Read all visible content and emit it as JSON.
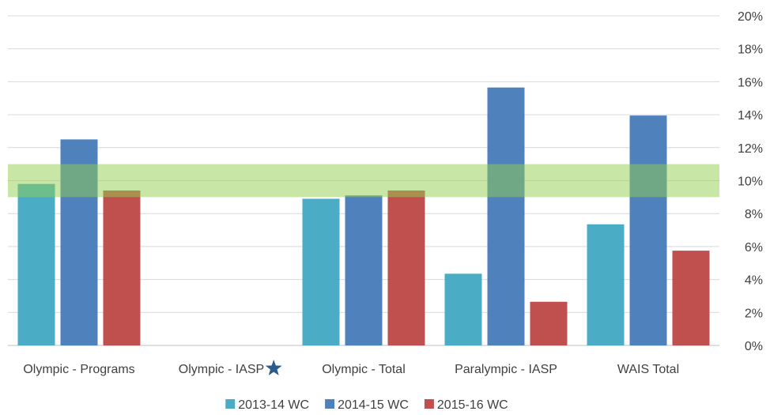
{
  "chart_data": {
    "type": "bar",
    "categories": [
      "Olympic - Programs",
      "Olympic - IASP",
      "Olympic - Total",
      "Paralympic - IASP",
      "WAIS Total"
    ],
    "series": [
      {
        "name": "2013-14 WC",
        "color": "#4BACC6",
        "values": [
          9.8,
          null,
          8.9,
          4.35,
          7.35
        ]
      },
      {
        "name": "2014-15 WC",
        "color": "#4F81BD",
        "values": [
          12.5,
          null,
          9.1,
          15.65,
          13.95
        ]
      },
      {
        "name": "2015-16 WC",
        "color": "#C0504D",
        "values": [
          9.4,
          null,
          9.4,
          2.65,
          5.75
        ]
      }
    ],
    "ylim": [
      0,
      20
    ],
    "yticks": [
      "0%",
      "2%",
      "4%",
      "6%",
      "8%",
      "10%",
      "12%",
      "14%",
      "16%",
      "18%",
      "20%"
    ],
    "ytick_values": [
      0,
      2,
      4,
      6,
      8,
      10,
      12,
      14,
      16,
      18,
      20
    ],
    "y_axis_side": "right",
    "grid": true,
    "target_band": {
      "from": 9,
      "to": 11,
      "color": "#92D050"
    },
    "marker": {
      "category_index": 1,
      "symbol": "star",
      "color": "#2E5B8E"
    },
    "legend": "bottom",
    "title": "",
    "xlabel": "",
    "ylabel": ""
  }
}
